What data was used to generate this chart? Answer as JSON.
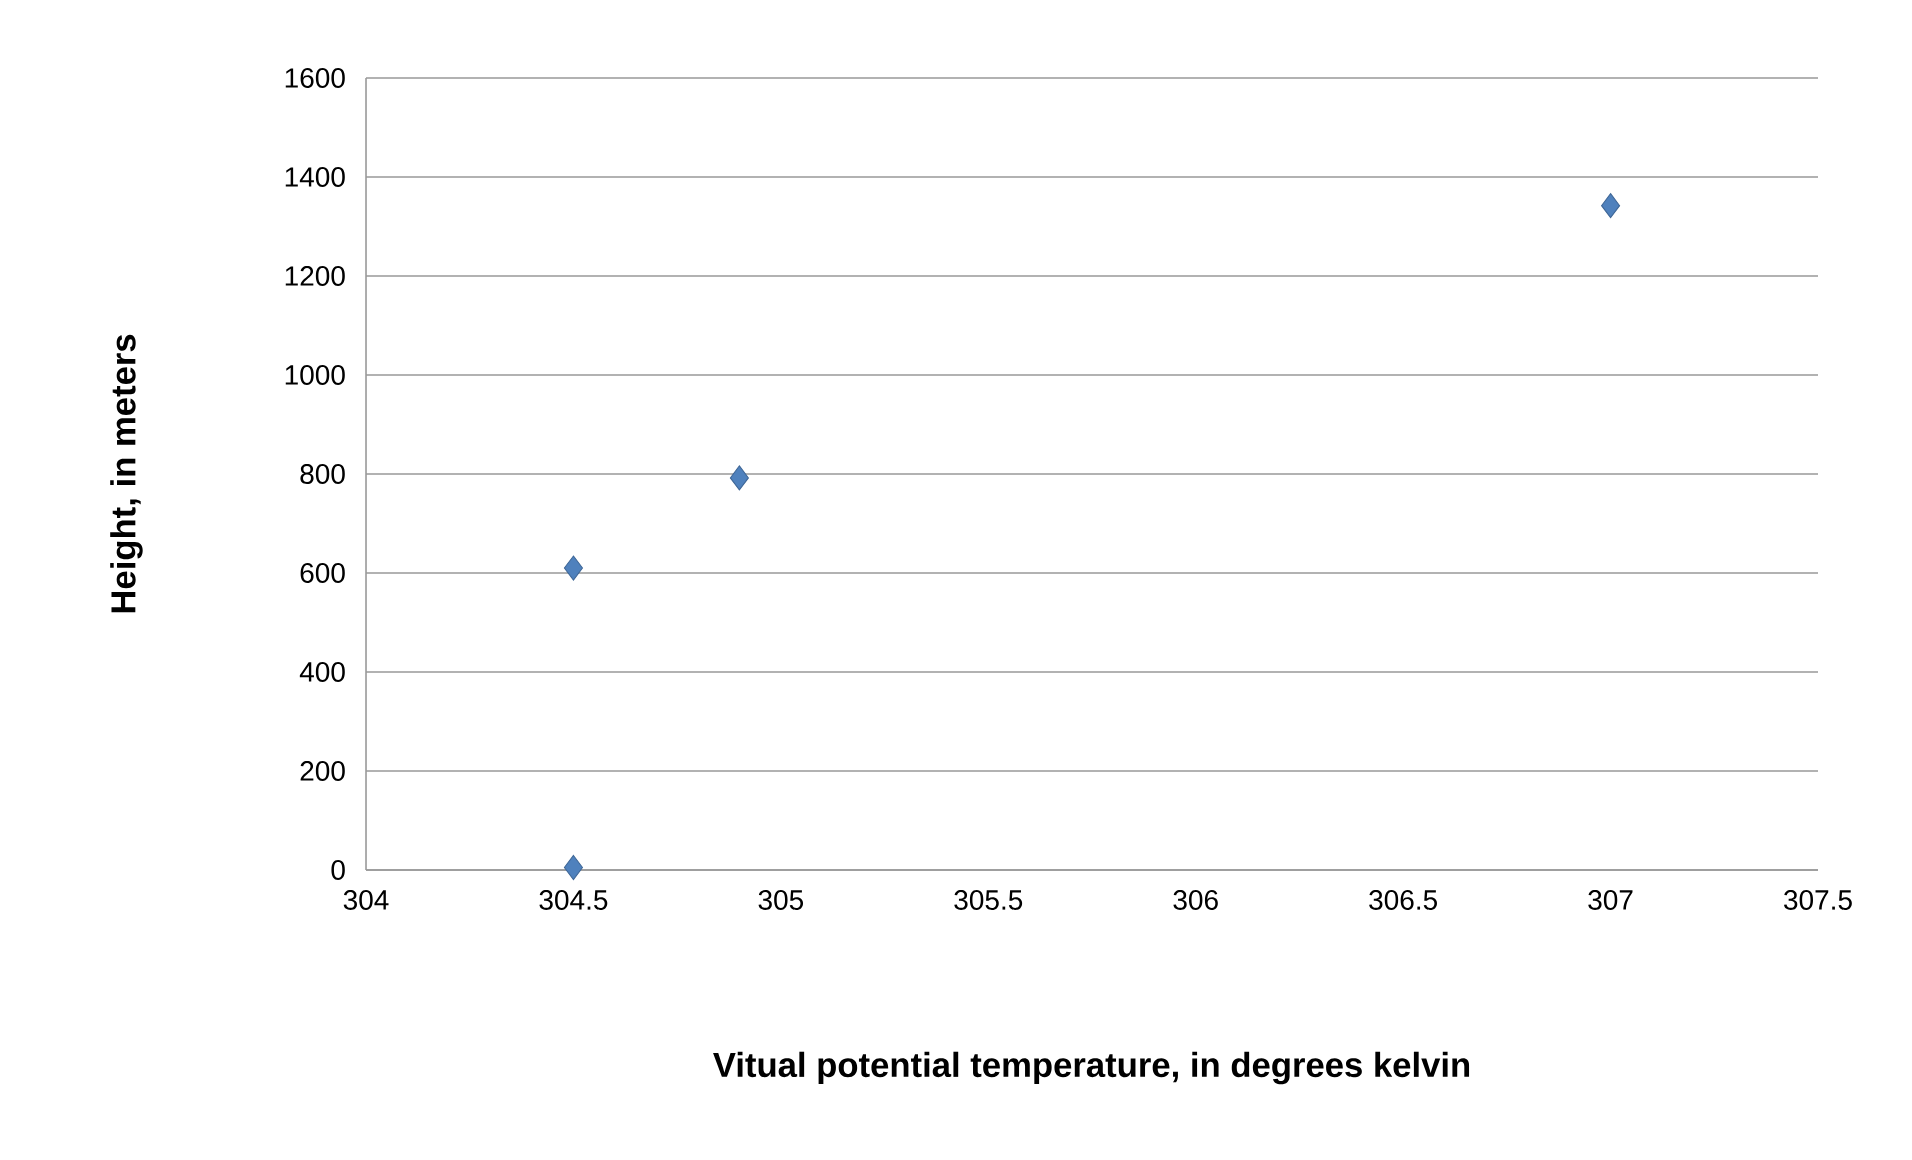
{
  "chart_data": {
    "type": "scatter",
    "xlabel": "Vitual potential temperature, in degrees kelvin",
    "ylabel": "Height, in meters",
    "x": [
      304.5,
      304.5,
      304.9,
      307
    ],
    "values": [
      5,
      610,
      792,
      1342
    ],
    "color": "#4f81bd",
    "marker": "diamond",
    "xlim": [
      304,
      307.5
    ],
    "ylim": [
      0,
      1600
    ],
    "xticks": [
      304,
      304.5,
      305,
      305.5,
      306,
      306.5,
      307,
      307.5
    ],
    "yticks": [
      0,
      200,
      400,
      600,
      800,
      1000,
      1200,
      1400,
      1600
    ],
    "grid": "y"
  }
}
